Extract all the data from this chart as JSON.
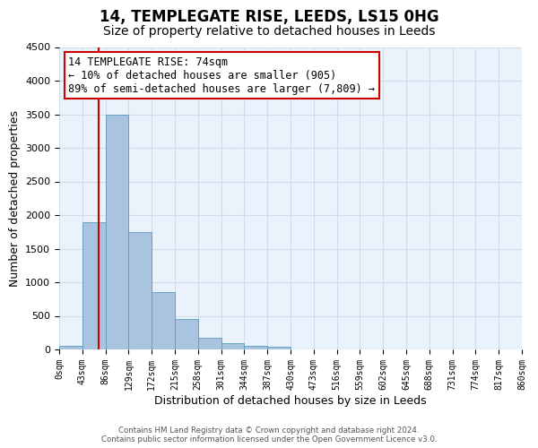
{
  "title": "14, TEMPLEGATE RISE, LEEDS, LS15 0HG",
  "subtitle": "Size of property relative to detached houses in Leeds",
  "xlabel": "Distribution of detached houses by size in Leeds",
  "ylabel": "Number of detached properties",
  "bar_heights": [
    50,
    1900,
    3500,
    1750,
    850,
    450,
    175,
    90,
    55,
    40,
    0,
    0,
    0,
    0,
    0,
    0,
    0,
    0,
    0,
    0
  ],
  "bin_edges": [
    0,
    43,
    86,
    129,
    172,
    215,
    258,
    301,
    344,
    387,
    430,
    473,
    516,
    559,
    602,
    645,
    688,
    731,
    774,
    817,
    860
  ],
  "tick_labels": [
    "0sqm",
    "43sqm",
    "86sqm",
    "129sqm",
    "172sqm",
    "215sqm",
    "258sqm",
    "301sqm",
    "344sqm",
    "387sqm",
    "430sqm",
    "473sqm",
    "516sqm",
    "559sqm",
    "602sqm",
    "645sqm",
    "688sqm",
    "731sqm",
    "774sqm",
    "817sqm",
    "860sqm"
  ],
  "bar_color": "#aac4e0",
  "bar_edge_color": "#5a9abf",
  "grid_color": "#d0dce8",
  "bg_color": "#eaf2fb",
  "vline_x": 74,
  "vline_color": "#cc0000",
  "annotation_line1": "14 TEMPLEGATE RISE: 74sqm",
  "annotation_line2": "← 10% of detached houses are smaller (905)",
  "annotation_line3": "89% of semi-detached houses are larger (7,809) →",
  "annotation_box_color": "#cc0000",
  "ylim": [
    0,
    4500
  ],
  "yticks": [
    0,
    500,
    1000,
    1500,
    2000,
    2500,
    3000,
    3500,
    4000,
    4500
  ],
  "footnote1": "Contains HM Land Registry data © Crown copyright and database right 2024.",
  "footnote2": "Contains public sector information licensed under the Open Government Licence v3.0.",
  "title_fontsize": 12,
  "subtitle_fontsize": 10,
  "axis_label_fontsize": 9,
  "tick_fontsize": 7,
  "annotation_fontsize": 8.5
}
